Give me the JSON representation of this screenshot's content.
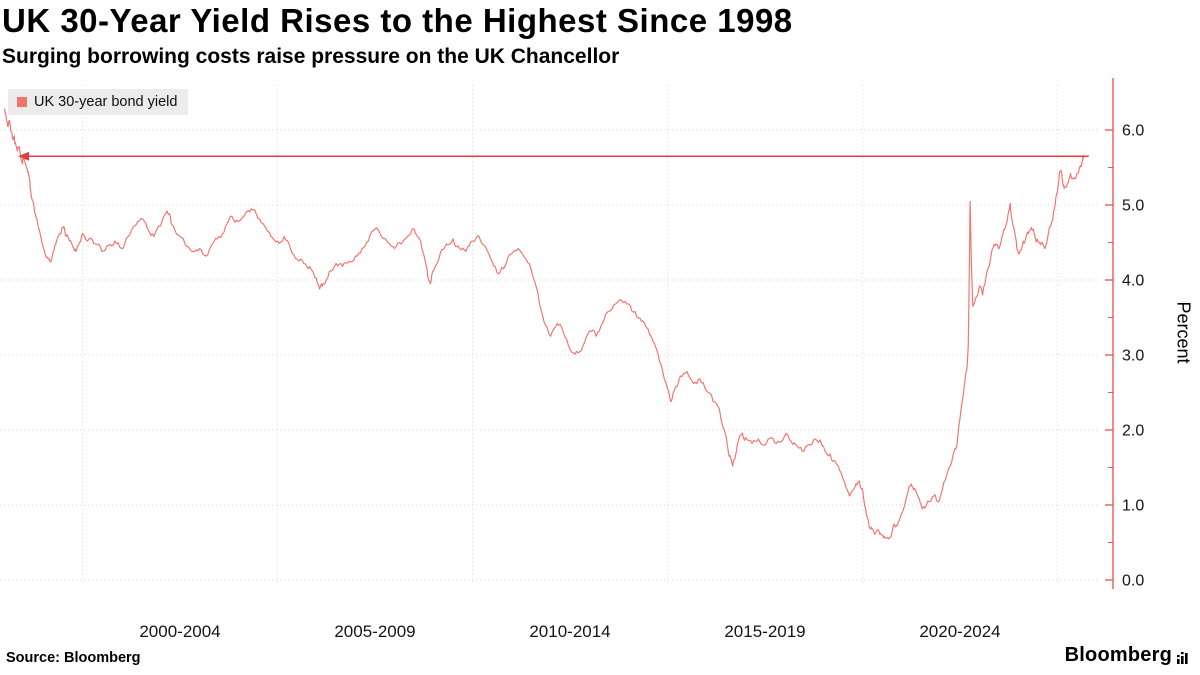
{
  "header": {
    "title": "UK 30-Year Yield Rises to the Highest Since 1998",
    "subtitle": "Surging borrowing costs raise pressure on the UK Chancellor"
  },
  "legend": {
    "label": "UK 30-year bond yield",
    "swatch_color": "#f5726b"
  },
  "footer": {
    "source": "Source:  Bloomberg",
    "brand": "Bloomberg"
  },
  "colors": {
    "series_line": "#f5726b",
    "annotation_arrow": "#d8433f",
    "axis": "#e0534f",
    "gridline": "#d8d8d8"
  },
  "chart_data": {
    "type": "line",
    "title": "UK 30-Year Yield Rises to the Highest Since 1998",
    "subtitle": "Surging borrowing costs raise pressure on the UK Chancellor",
    "grid": true,
    "legend_position": "top-left",
    "x_axis": {
      "range": [
        1997.95,
        2025.85
      ],
      "gridline_years": [
        2000,
        2005,
        2010,
        2015,
        2020,
        2025
      ],
      "labels": [
        {
          "text": "2000-2004",
          "center_year": 2002.5
        },
        {
          "text": "2005-2009",
          "center_year": 2007.5
        },
        {
          "text": "2010-2014",
          "center_year": 2012.5
        },
        {
          "text": "2015-2019",
          "center_year": 2017.5
        },
        {
          "text": "2020-2024",
          "center_year": 2022.5
        }
      ]
    },
    "y_axis": {
      "label": "Percent",
      "side": "right",
      "range": [
        0,
        6.6
      ],
      "ticks": [
        {
          "value": 0,
          "text": "0.0"
        },
        {
          "value": 1,
          "text": "1.0"
        },
        {
          "value": 2,
          "text": "2.0"
        },
        {
          "value": 3,
          "text": "3.0"
        },
        {
          "value": 4,
          "text": "4.0"
        },
        {
          "value": 5,
          "text": "5.0"
        },
        {
          "value": 6,
          "text": "6.0"
        }
      ]
    },
    "annotation": {
      "type": "horizontal-arrow",
      "value": 5.65,
      "from_year": 1998.63,
      "to_year": 2025.8,
      "color": "#d8433f",
      "description": "Line with left arrowhead marking the 1998 level now matched by the 2025 high (~5.65%)"
    },
    "series": [
      {
        "name": "UK 30-year bond yield",
        "color": "#f5726b",
        "unit": "percent",
        "points": [
          [
            1998.0,
            6.28
          ],
          [
            1998.04,
            6.18
          ],
          [
            1998.08,
            6.05
          ],
          [
            1998.13,
            6.12
          ],
          [
            1998.17,
            5.98
          ],
          [
            1998.21,
            5.88
          ],
          [
            1998.25,
            5.92
          ],
          [
            1998.29,
            5.8
          ],
          [
            1998.33,
            5.72
          ],
          [
            1998.38,
            5.78
          ],
          [
            1998.42,
            5.62
          ],
          [
            1998.46,
            5.55
          ],
          [
            1998.5,
            5.62
          ],
          [
            1998.58,
            5.48
          ],
          [
            1998.63,
            5.38
          ],
          [
            1998.67,
            5.2
          ],
          [
            1998.75,
            5.0
          ],
          [
            1998.83,
            4.82
          ],
          [
            1998.92,
            4.6
          ],
          [
            1999.0,
            4.42
          ],
          [
            1999.08,
            4.3
          ],
          [
            1999.17,
            4.24
          ],
          [
            1999.25,
            4.38
          ],
          [
            1999.33,
            4.52
          ],
          [
            1999.42,
            4.62
          ],
          [
            1999.5,
            4.7
          ],
          [
            1999.58,
            4.58
          ],
          [
            1999.67,
            4.52
          ],
          [
            1999.75,
            4.44
          ],
          [
            1999.83,
            4.38
          ],
          [
            1999.92,
            4.5
          ],
          [
            2000.0,
            4.62
          ],
          [
            2000.17,
            4.55
          ],
          [
            2000.33,
            4.48
          ],
          [
            2000.5,
            4.38
          ],
          [
            2000.67,
            4.46
          ],
          [
            2000.83,
            4.52
          ],
          [
            2001.0,
            4.42
          ],
          [
            2001.17,
            4.58
          ],
          [
            2001.33,
            4.72
          ],
          [
            2001.5,
            4.82
          ],
          [
            2001.67,
            4.68
          ],
          [
            2001.83,
            4.58
          ],
          [
            2002.0,
            4.72
          ],
          [
            2002.17,
            4.92
          ],
          [
            2002.25,
            4.85
          ],
          [
            2002.33,
            4.72
          ],
          [
            2002.5,
            4.58
          ],
          [
            2002.67,
            4.45
          ],
          [
            2002.83,
            4.38
          ],
          [
            2003.0,
            4.42
          ],
          [
            2003.17,
            4.32
          ],
          [
            2003.33,
            4.48
          ],
          [
            2003.5,
            4.58
          ],
          [
            2003.67,
            4.72
          ],
          [
            2003.83,
            4.85
          ],
          [
            2004.0,
            4.78
          ],
          [
            2004.17,
            4.88
          ],
          [
            2004.33,
            4.95
          ],
          [
            2004.5,
            4.82
          ],
          [
            2004.67,
            4.72
          ],
          [
            2004.83,
            4.58
          ],
          [
            2005.0,
            4.52
          ],
          [
            2005.17,
            4.58
          ],
          [
            2005.33,
            4.42
          ],
          [
            2005.5,
            4.28
          ],
          [
            2005.67,
            4.22
          ],
          [
            2005.83,
            4.18
          ],
          [
            2006.0,
            4.02
          ],
          [
            2006.08,
            3.88
          ],
          [
            2006.17,
            3.95
          ],
          [
            2006.33,
            4.12
          ],
          [
            2006.5,
            4.22
          ],
          [
            2006.67,
            4.18
          ],
          [
            2006.83,
            4.25
          ],
          [
            2007.0,
            4.32
          ],
          [
            2007.17,
            4.42
          ],
          [
            2007.33,
            4.52
          ],
          [
            2007.5,
            4.68
          ],
          [
            2007.67,
            4.58
          ],
          [
            2007.83,
            4.5
          ],
          [
            2008.0,
            4.42
          ],
          [
            2008.17,
            4.48
          ],
          [
            2008.33,
            4.58
          ],
          [
            2008.5,
            4.68
          ],
          [
            2008.67,
            4.52
          ],
          [
            2008.83,
            4.15
          ],
          [
            2008.92,
            3.95
          ],
          [
            2009.0,
            4.12
          ],
          [
            2009.17,
            4.35
          ],
          [
            2009.33,
            4.48
          ],
          [
            2009.5,
            4.55
          ],
          [
            2009.67,
            4.42
          ],
          [
            2009.83,
            4.38
          ],
          [
            2010.0,
            4.52
          ],
          [
            2010.17,
            4.58
          ],
          [
            2010.33,
            4.45
          ],
          [
            2010.5,
            4.25
          ],
          [
            2010.67,
            4.08
          ],
          [
            2010.83,
            4.18
          ],
          [
            2011.0,
            4.35
          ],
          [
            2011.17,
            4.42
          ],
          [
            2011.33,
            4.3
          ],
          [
            2011.5,
            4.15
          ],
          [
            2011.67,
            3.85
          ],
          [
            2011.83,
            3.45
          ],
          [
            2012.0,
            3.25
          ],
          [
            2012.17,
            3.42
          ],
          [
            2012.33,
            3.3
          ],
          [
            2012.5,
            3.08
          ],
          [
            2012.67,
            3.05
          ],
          [
            2012.83,
            3.12
          ],
          [
            2013.0,
            3.32
          ],
          [
            2013.17,
            3.25
          ],
          [
            2013.33,
            3.42
          ],
          [
            2013.5,
            3.58
          ],
          [
            2013.67,
            3.68
          ],
          [
            2013.83,
            3.72
          ],
          [
            2014.0,
            3.68
          ],
          [
            2014.17,
            3.58
          ],
          [
            2014.33,
            3.45
          ],
          [
            2014.5,
            3.35
          ],
          [
            2014.67,
            3.15
          ],
          [
            2014.83,
            2.88
          ],
          [
            2015.0,
            2.55
          ],
          [
            2015.08,
            2.38
          ],
          [
            2015.17,
            2.52
          ],
          [
            2015.33,
            2.72
          ],
          [
            2015.5,
            2.78
          ],
          [
            2015.67,
            2.62
          ],
          [
            2015.83,
            2.68
          ],
          [
            2016.0,
            2.52
          ],
          [
            2016.17,
            2.38
          ],
          [
            2016.33,
            2.28
          ],
          [
            2016.5,
            1.92
          ],
          [
            2016.58,
            1.65
          ],
          [
            2016.67,
            1.52
          ],
          [
            2016.75,
            1.68
          ],
          [
            2016.83,
            1.88
          ],
          [
            2016.92,
            1.96
          ],
          [
            2017.0,
            1.9
          ],
          [
            2017.17,
            1.82
          ],
          [
            2017.33,
            1.88
          ],
          [
            2017.5,
            1.8
          ],
          [
            2017.67,
            1.9
          ],
          [
            2017.83,
            1.85
          ],
          [
            2018.0,
            1.92
          ],
          [
            2018.17,
            1.85
          ],
          [
            2018.33,
            1.78
          ],
          [
            2018.5,
            1.72
          ],
          [
            2018.67,
            1.8
          ],
          [
            2018.83,
            1.86
          ],
          [
            2019.0,
            1.78
          ],
          [
            2019.17,
            1.68
          ],
          [
            2019.33,
            1.55
          ],
          [
            2019.5,
            1.35
          ],
          [
            2019.67,
            1.12
          ],
          [
            2019.83,
            1.28
          ],
          [
            2019.92,
            1.32
          ],
          [
            2020.0,
            1.22
          ],
          [
            2020.08,
            0.95
          ],
          [
            2020.17,
            0.72
          ],
          [
            2020.25,
            0.68
          ],
          [
            2020.33,
            0.62
          ],
          [
            2020.42,
            0.66
          ],
          [
            2020.5,
            0.6
          ],
          [
            2020.58,
            0.56
          ],
          [
            2020.67,
            0.55
          ],
          [
            2020.75,
            0.62
          ],
          [
            2020.83,
            0.72
          ],
          [
            2020.92,
            0.78
          ],
          [
            2021.0,
            0.88
          ],
          [
            2021.17,
            1.18
          ],
          [
            2021.25,
            1.28
          ],
          [
            2021.33,
            1.22
          ],
          [
            2021.42,
            1.12
          ],
          [
            2021.5,
            1.02
          ],
          [
            2021.58,
            0.98
          ],
          [
            2021.67,
            1.05
          ],
          [
            2021.83,
            1.12
          ],
          [
            2021.92,
            1.05
          ],
          [
            2022.0,
            1.12
          ],
          [
            2022.17,
            1.42
          ],
          [
            2022.33,
            1.68
          ],
          [
            2022.42,
            1.8
          ],
          [
            2022.5,
            2.15
          ],
          [
            2022.58,
            2.45
          ],
          [
            2022.67,
            2.8
          ],
          [
            2022.71,
            3.1
          ],
          [
            2022.74,
            4.2
          ],
          [
            2022.76,
            5.05
          ],
          [
            2022.79,
            4.3
          ],
          [
            2022.83,
            3.65
          ],
          [
            2022.92,
            3.78
          ],
          [
            2023.0,
            3.92
          ],
          [
            2023.08,
            3.8
          ],
          [
            2023.17,
            4.05
          ],
          [
            2023.25,
            4.18
          ],
          [
            2023.33,
            4.42
          ],
          [
            2023.42,
            4.48
          ],
          [
            2023.5,
            4.42
          ],
          [
            2023.58,
            4.58
          ],
          [
            2023.67,
            4.72
          ],
          [
            2023.75,
            4.92
          ],
          [
            2023.79,
            5.02
          ],
          [
            2023.83,
            4.82
          ],
          [
            2023.92,
            4.58
          ],
          [
            2024.0,
            4.35
          ],
          [
            2024.08,
            4.42
          ],
          [
            2024.17,
            4.52
          ],
          [
            2024.25,
            4.62
          ],
          [
            2024.33,
            4.7
          ],
          [
            2024.42,
            4.58
          ],
          [
            2024.5,
            4.52
          ],
          [
            2024.58,
            4.48
          ],
          [
            2024.67,
            4.42
          ],
          [
            2024.75,
            4.58
          ],
          [
            2024.83,
            4.72
          ],
          [
            2024.92,
            4.95
          ],
          [
            2025.0,
            5.18
          ],
          [
            2025.04,
            5.35
          ],
          [
            2025.08,
            5.45
          ],
          [
            2025.13,
            5.32
          ],
          [
            2025.17,
            5.22
          ],
          [
            2025.25,
            5.28
          ],
          [
            2025.33,
            5.42
          ],
          [
            2025.42,
            5.35
          ],
          [
            2025.5,
            5.42
          ],
          [
            2025.58,
            5.52
          ],
          [
            2025.63,
            5.58
          ],
          [
            2025.67,
            5.63
          ]
        ]
      }
    ]
  },
  "render": {
    "seed": 11,
    "subdivision_amps": [
      0.05,
      0.03
    ]
  }
}
